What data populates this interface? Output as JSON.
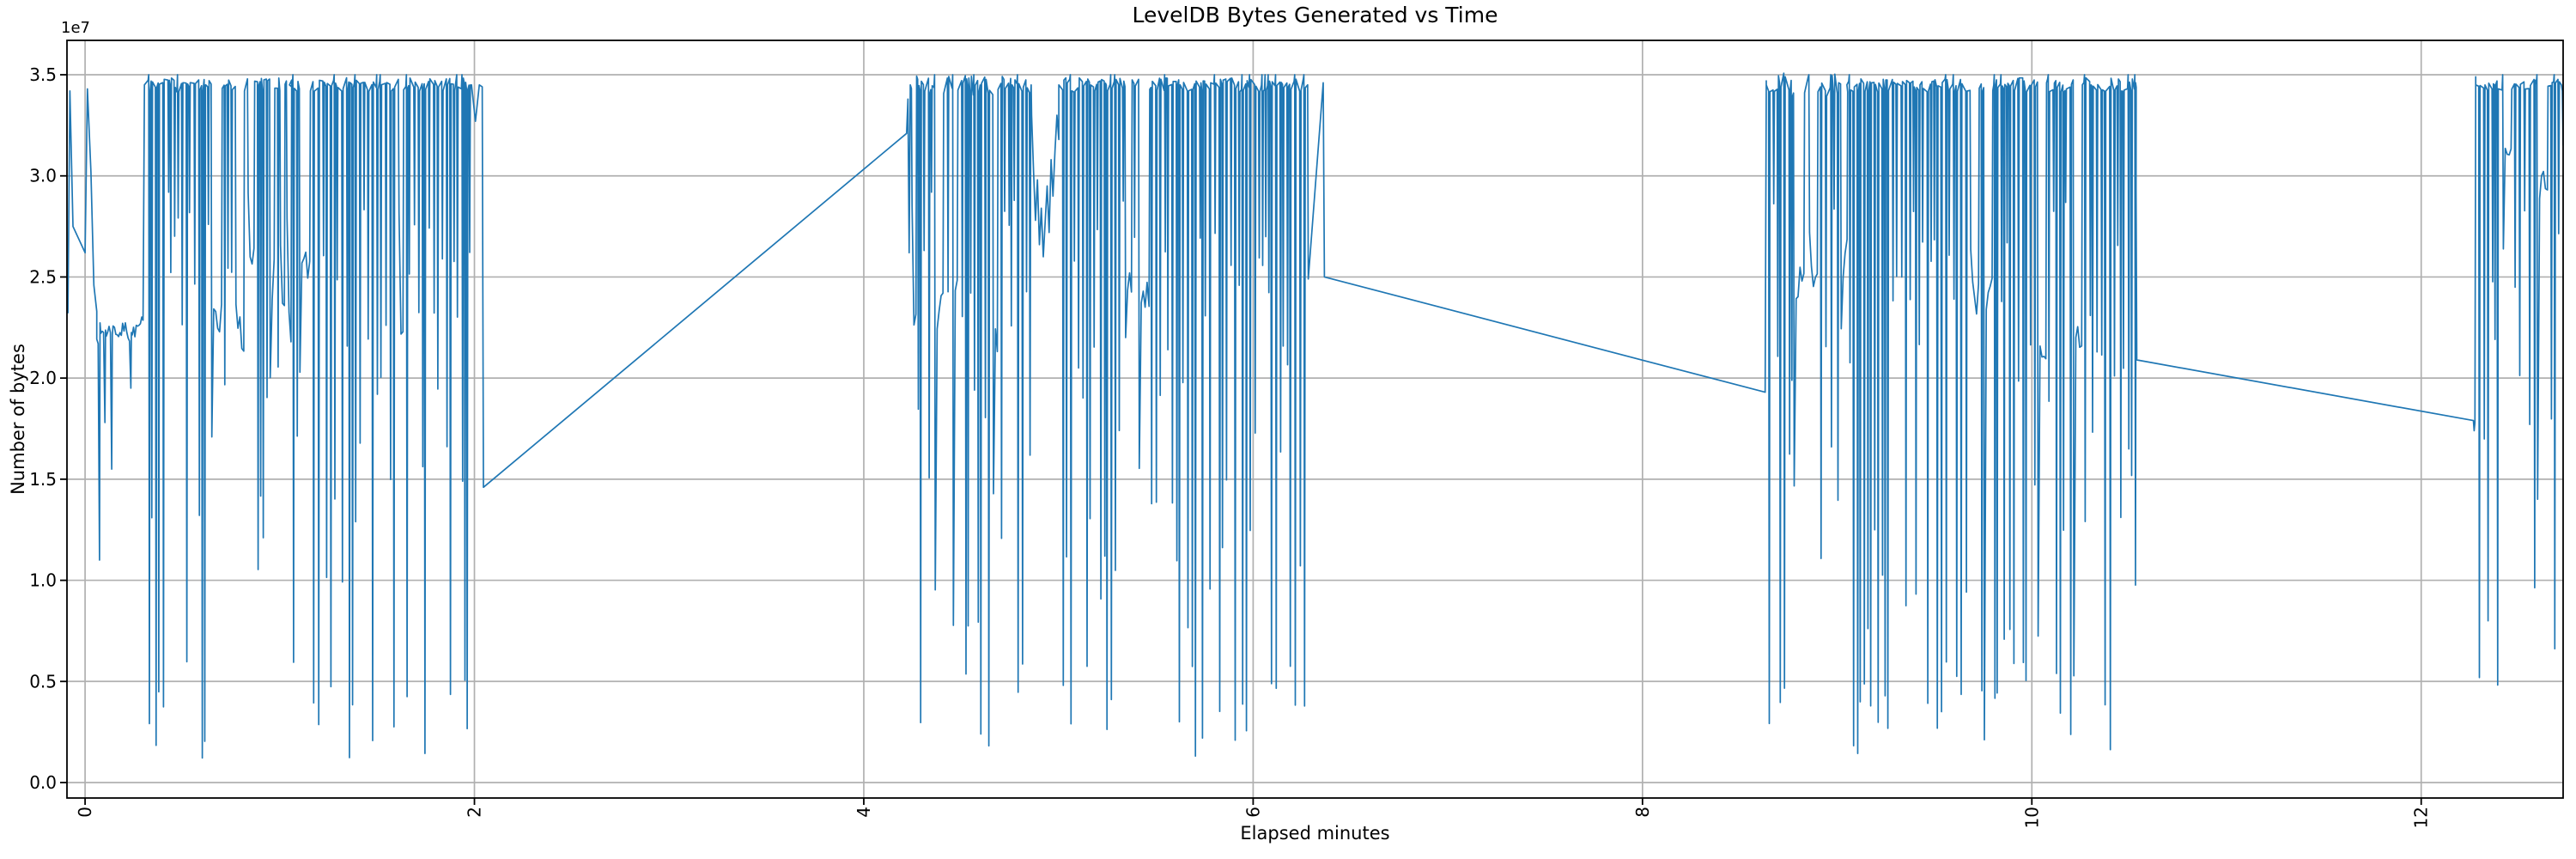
{
  "chart_data": {
    "type": "line",
    "title": "LevelDB Bytes Generated vs Time",
    "xlabel": "Elapsed minutes",
    "ylabel": "Number of bytes",
    "y_offset_text": "1e7",
    "value_units": "y values expressed in units of 1e7 bytes",
    "grid": true,
    "legend": "none",
    "background_color": "#ffffff",
    "grid_color": "#b0b0b0",
    "axis_color": "#000000",
    "line_color": "#1f77b4",
    "xlim": [
      -0.093,
      12.729
    ],
    "ylim_e7": [
      -0.0765,
      3.67
    ],
    "x_ticks": [
      0,
      2,
      4,
      6,
      8,
      10,
      12
    ],
    "x_tick_labels": [
      "0",
      "2",
      "4",
      "6",
      "8",
      "10",
      "12"
    ],
    "x_tick_rotation_deg": 90,
    "y_ticks_e7": [
      0.0,
      0.5,
      1.0,
      1.5,
      2.0,
      2.5,
      3.0,
      3.5
    ],
    "y_tick_labels": [
      "0.0",
      "0.5",
      "1.0",
      "1.5",
      "2.0",
      "2.5",
      "3.0",
      "3.5"
    ],
    "series": [
      {
        "name": "leveldb-bytes-generated",
        "color": "#1f77b4",
        "line_width": 1.7,
        "description": "Four dense burst clusters of compaction output oscillating between a ~3.45e7-byte ceiling and drops as deep as ~1.2e6 bytes, separated by long straight connector lines across idle gaps.",
        "construction": {
          "seed": 7,
          "segments": [
            {
              "type": "pts",
              "pts": [
                [
                  -0.088,
                  2.32
                ],
                [
                  -0.078,
                  3.42
                ],
                [
                  -0.062,
                  2.75
                ],
                [
                  0.0,
                  2.62
                ],
                [
                  0.012,
                  3.43
                ],
                [
                  0.03,
                  3.02
                ],
                [
                  0.045,
                  2.46
                ],
                [
                  0.06,
                  2.33
                ]
              ]
            },
            {
              "type": "noise",
              "t0": 0.06,
              "t1": 0.305,
              "base": 2.24,
              "amp": 0.07,
              "dt": 0.007,
              "dips": [
                [
                  0.072,
                  1.1
                ],
                [
                  0.1,
                  1.78
                ],
                [
                  0.135,
                  1.55
                ],
                [
                  0.23,
                  1.95
                ]
              ]
            },
            {
              "type": "train",
              "t0": 0.305,
              "t1": 0.62,
              "p_hover": 0.1
            },
            {
              "type": "train",
              "t0": 0.62,
              "t1": 1.05,
              "p_hover": 0.3
            },
            {
              "type": "train",
              "t0": 1.05,
              "t1": 1.98,
              "p_hover": 0.08
            },
            {
              "type": "pts",
              "pts": [
                [
                  1.985,
                  3.45
                ],
                [
                  2.005,
                  3.27
                ],
                [
                  2.025,
                  3.45
                ],
                [
                  2.04,
                  3.44
                ],
                [
                  2.046,
                  1.46
                ]
              ]
            },
            {
              "type": "pts",
              "pts": [
                [
                  4.22,
                  3.21
                ],
                [
                  4.227,
                  3.38
                ],
                [
                  4.233,
                  2.62
                ],
                [
                  4.239,
                  3.42
                ]
              ]
            },
            {
              "type": "train",
              "t0": 4.239,
              "t1": 4.86,
              "p_hover": 0.12,
              "top_jitter": 0.05
            },
            {
              "type": "pts",
              "pts": [
                [
                  4.862,
                  3.3
                ],
                [
                  4.872,
                  3.02
                ],
                [
                  4.882,
                  2.78
                ],
                [
                  4.892,
                  2.98
                ],
                [
                  4.902,
                  2.66
                ],
                [
                  4.912,
                  2.84
                ],
                [
                  4.922,
                  2.6
                ],
                [
                  4.932,
                  2.78
                ],
                [
                  4.942,
                  2.95
                ],
                [
                  4.952,
                  2.72
                ],
                [
                  4.962,
                  3.08
                ],
                [
                  4.972,
                  2.9
                ],
                [
                  4.982,
                  3.12
                ],
                [
                  4.992,
                  3.3
                ],
                [
                  5.002,
                  3.18
                ]
              ]
            },
            {
              "type": "train",
              "t0": 5.002,
              "t1": 6.28,
              "p_hover": 0.07
            },
            {
              "type": "pts",
              "pts": [
                [
                  6.283,
                  2.49
                ],
                [
                  6.36,
                  3.46
                ],
                [
                  6.366,
                  2.5
                ]
              ]
            },
            {
              "type": "pts",
              "pts": [
                [
                  8.63,
                  1.93
                ],
                [
                  8.636,
                  3.47
                ]
              ]
            },
            {
              "type": "train",
              "t0": 8.636,
              "t1": 9.05,
              "p_hover": 0.2,
              "top_jitter": 0.06
            },
            {
              "type": "train",
              "t0": 9.05,
              "t1": 10.53,
              "p_hover": 0.07
            },
            {
              "type": "pts",
              "pts": [
                [
                  10.533,
                  3.46
                ],
                [
                  10.539,
                  2.09
                ]
              ]
            },
            {
              "type": "pts",
              "pts": [
                [
                  12.268,
                  1.79
                ],
                [
                  12.272,
                  1.74
                ],
                [
                  12.276,
                  1.78
                ],
                [
                  12.28,
                  3.49
                ]
              ]
            },
            {
              "type": "train",
              "t0": 12.28,
              "t1": 12.72,
              "p_deep": 0.25,
              "deep": [
                0.45,
                0.9
              ],
              "p_hover": 0.12,
              "hover": [
                2.9,
                3.2
              ]
            },
            {
              "type": "pts",
              "pts": [
                [
                  12.725,
                  3.42
                ],
                [
                  12.729,
                  3.15
                ]
              ]
            }
          ],
          "train_defaults": {
            "plateau": [
              0.004,
              0.02
            ],
            "ceiling": 3.45,
            "top_jitter": 0.035,
            "peak": 3.5,
            "p_peak": 0.15,
            "p_deep": 0.3,
            "deep": [
              0.12,
              0.6
            ],
            "p_mid": 0.3,
            "mid": [
              0.7,
              2.0
            ],
            "shallow": [
              2.0,
              2.95
            ],
            "p_hover": 0.08,
            "hover": [
              2.15,
              2.6
            ]
          },
          "macro_anchor_points_e7": [
            [
              0.0,
              3.43
            ],
            [
              0.06,
              2.24
            ],
            [
              0.3,
              2.24
            ],
            [
              2.03,
              3.44
            ],
            [
              2.046,
              1.46
            ],
            [
              4.22,
              3.21
            ],
            [
              6.283,
              2.49
            ],
            [
              6.36,
              3.46
            ],
            [
              6.366,
              2.5
            ],
            [
              8.63,
              1.93
            ],
            [
              8.636,
              3.47
            ],
            [
              10.533,
              3.46
            ],
            [
              10.539,
              2.09
            ],
            [
              12.27,
              1.79
            ],
            [
              12.28,
              3.49
            ],
            [
              12.72,
              3.45
            ]
          ]
        }
      }
    ]
  }
}
